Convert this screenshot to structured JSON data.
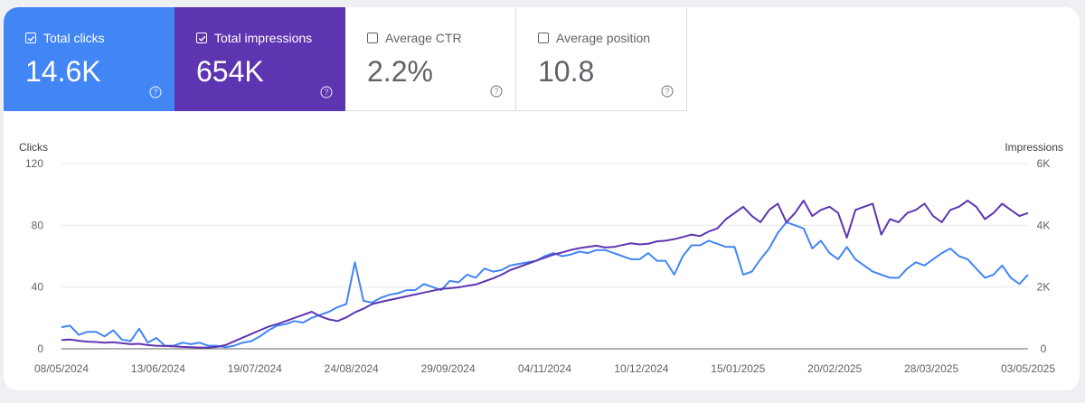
{
  "metrics": [
    {
      "label": "Total clicks",
      "value": "14.6K",
      "selected": true,
      "color": "#4285f4"
    },
    {
      "label": "Total impressions",
      "value": "654K",
      "selected": true,
      "color": "#5e35b1"
    },
    {
      "label": "Average CTR",
      "value": "2.2%",
      "selected": false
    },
    {
      "label": "Average position",
      "value": "10.8",
      "selected": false
    }
  ],
  "icons": {
    "checkbox": "checkbox-icon",
    "help": "help-circle-icon"
  },
  "chart_data": {
    "type": "line",
    "left_axis_title": "Clicks",
    "right_axis_title": "Impressions",
    "ylim_left": [
      0,
      120
    ],
    "ylim_right": [
      0,
      6000
    ],
    "left_ticks": [
      "0",
      "40",
      "80",
      "120"
    ],
    "right_ticks": [
      "0",
      "2K",
      "4K",
      "6K"
    ],
    "x_ticks": [
      "08/05/2024",
      "13/06/2024",
      "19/07/2024",
      "24/08/2024",
      "29/09/2024",
      "04/11/2024",
      "10/12/2024",
      "15/01/2025",
      "20/02/2025",
      "28/03/2025",
      "03/05/2025"
    ],
    "grid": true,
    "series": [
      {
        "name": "Total clicks",
        "axis": "left",
        "color": "#4285f4",
        "values": [
          14,
          15,
          9,
          11,
          11,
          8,
          12,
          6,
          5,
          13,
          4,
          7,
          2,
          2,
          4,
          3,
          4,
          2,
          2,
          1,
          2,
          4,
          5,
          8,
          12,
          15,
          16,
          18,
          17,
          20,
          22,
          24,
          27,
          29,
          56,
          31,
          30,
          33,
          35,
          36,
          38,
          38,
          42,
          40,
          38,
          44,
          43,
          48,
          46,
          52,
          50,
          51,
          54,
          55,
          56,
          57,
          60,
          62,
          60,
          61,
          63,
          62,
          64,
          64,
          62,
          60,
          58,
          58,
          62,
          57,
          57,
          48,
          60,
          67,
          67,
          70,
          68,
          66,
          66,
          48,
          50,
          58,
          65,
          75,
          82,
          80,
          78,
          65,
          70,
          62,
          58,
          66,
          58,
          54,
          50,
          48,
          46,
          46,
          52,
          56,
          54,
          58,
          62,
          65,
          60,
          58,
          52,
          46,
          48,
          54,
          46,
          42,
          48
        ]
      },
      {
        "name": "Total impressions",
        "axis": "right",
        "color": "#5e35b1",
        "values": [
          280,
          300,
          260,
          230,
          220,
          200,
          210,
          180,
          150,
          160,
          120,
          100,
          90,
          80,
          60,
          50,
          40,
          40,
          60,
          120,
          240,
          360,
          480,
          600,
          720,
          800,
          900,
          1000,
          1100,
          1200,
          1050,
          950,
          900,
          1020,
          1180,
          1300,
          1450,
          1520,
          1580,
          1640,
          1700,
          1760,
          1820,
          1880,
          1940,
          1960,
          1990,
          2040,
          2080,
          2180,
          2280,
          2400,
          2550,
          2650,
          2750,
          2850,
          2950,
          3050,
          3120,
          3200,
          3260,
          3300,
          3340,
          3280,
          3300,
          3360,
          3420,
          3380,
          3400,
          3480,
          3500,
          3550,
          3620,
          3700,
          3650,
          3800,
          3900,
          4200,
          4400,
          4600,
          4300,
          4100,
          4500,
          4700,
          4100,
          4400,
          4800,
          4300,
          4500,
          4600,
          4400,
          3600,
          4500,
          4600,
          4700,
          3700,
          4200,
          4100,
          4400,
          4500,
          4700,
          4300,
          4100,
          4500,
          4600,
          4800,
          4600,
          4200,
          4400,
          4700,
          4500,
          4300,
          4400
        ]
      }
    ]
  }
}
